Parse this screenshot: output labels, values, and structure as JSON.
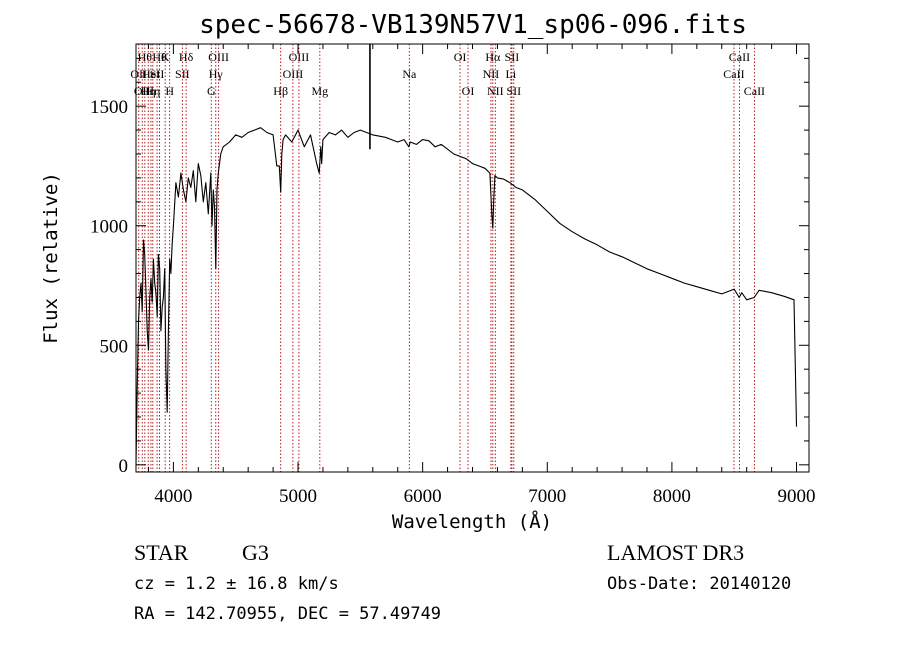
{
  "chart_data": {
    "type": "line",
    "title": "spec-56678-VB139N57V1_sp06-096.fits",
    "xlabel": "Wavelength (Å)",
    "ylabel": "Flux (relative)",
    "xlim": [
      3700,
      9100
    ],
    "ylim": [
      -30,
      1760
    ],
    "xticks": [
      4000,
      5000,
      6000,
      7000,
      8000,
      9000
    ],
    "yticks": [
      0,
      500,
      1000,
      1500
    ],
    "grid": false,
    "series": [
      {
        "name": "flux",
        "x": [
          3700,
          3710,
          3720,
          3730,
          3740,
          3750,
          3760,
          3770,
          3780,
          3790,
          3800,
          3810,
          3820,
          3830,
          3840,
          3850,
          3860,
          3870,
          3880,
          3890,
          3900,
          3910,
          3920,
          3930,
          3940,
          3950,
          3960,
          3970,
          3980,
          3990,
          4000,
          4020,
          4040,
          4060,
          4080,
          4100,
          4120,
          4140,
          4160,
          4180,
          4200,
          4220,
          4240,
          4260,
          4280,
          4300,
          4310,
          4320,
          4330,
          4340,
          4350,
          4360,
          4380,
          4400,
          4450,
          4500,
          4550,
          4600,
          4650,
          4700,
          4750,
          4800,
          4830,
          4850,
          4861,
          4870,
          4880,
          4900,
          4950,
          5000,
          5050,
          5100,
          5150,
          5170,
          5183,
          5190,
          5200,
          5250,
          5300,
          5350,
          5400,
          5450,
          5500,
          5550,
          5600,
          5650,
          5700,
          5750,
          5800,
          5850,
          5890,
          5900,
          5950,
          6000,
          6050,
          6100,
          6150,
          6200,
          6250,
          6300,
          6350,
          6400,
          6450,
          6500,
          6540,
          6555,
          6563,
          6570,
          6580,
          6600,
          6650,
          6700,
          6750,
          6800,
          6900,
          7000,
          7100,
          7200,
          7300,
          7400,
          7500,
          7600,
          7700,
          7800,
          7900,
          8000,
          8100,
          8200,
          8300,
          8400,
          8500,
          8540,
          8560,
          8600,
          8660,
          8700,
          8800,
          8900,
          8980,
          9000
        ],
        "values": [
          0,
          320,
          600,
          700,
          760,
          640,
          940,
          880,
          720,
          560,
          480,
          700,
          780,
          680,
          860,
          760,
          720,
          620,
          880,
          820,
          560,
          660,
          700,
          820,
          400,
          220,
          560,
          860,
          800,
          920,
          1000,
          1180,
          1120,
          1220,
          1150,
          1100,
          1200,
          1160,
          1230,
          1100,
          1260,
          1210,
          1100,
          1180,
          1050,
          1220,
          1000,
          1150,
          1080,
          820,
          1150,
          1220,
          1300,
          1330,
          1350,
          1380,
          1370,
          1390,
          1400,
          1410,
          1390,
          1380,
          1250,
          1250,
          1140,
          1300,
          1360,
          1380,
          1350,
          1400,
          1330,
          1380,
          1260,
          1220,
          1330,
          1260,
          1360,
          1390,
          1380,
          1400,
          1370,
          1390,
          1400,
          1390,
          1380,
          1375,
          1370,
          1360,
          1350,
          1360,
          1330,
          1350,
          1340,
          1360,
          1355,
          1330,
          1340,
          1320,
          1300,
          1290,
          1280,
          1260,
          1250,
          1240,
          1220,
          1050,
          990,
          1100,
          1210,
          1200,
          1195,
          1180,
          1160,
          1150,
          1110,
          1060,
          1010,
          975,
          945,
          920,
          890,
          870,
          845,
          820,
          800,
          780,
          760,
          745,
          730,
          715,
          735,
          700,
          720,
          690,
          700,
          730,
          720,
          705,
          690,
          160
        ]
      }
    ],
    "annotations": [
      {
        "x": 3722,
        "text": "OII",
        "row": 2
      },
      {
        "x": 3750,
        "text": "OII",
        "row": 3
      },
      {
        "x": 3771,
        "text": "Hθ",
        "row": 1
      },
      {
        "x": 3798,
        "text": "Hη",
        "row": 3
      },
      {
        "x": 3835,
        "text": "Hη",
        "row": 3
      },
      {
        "x": 3820,
        "text": "HeI",
        "row": 2
      },
      {
        "x": 3869,
        "text": "SII",
        "row": 2
      },
      {
        "x": 3889,
        "text": "Hθ",
        "row": 1
      },
      {
        "x": 3934,
        "text": "K",
        "row": 1
      },
      {
        "x": 3970,
        "text": "H",
        "row": 3
      },
      {
        "x": 4072,
        "text": "SII",
        "row": 2
      },
      {
        "x": 4102,
        "text": "Hδ",
        "row": 1
      },
      {
        "x": 4304,
        "text": "G",
        "row": 3
      },
      {
        "x": 4340,
        "text": "Hγ",
        "row": 2
      },
      {
        "x": 4363,
        "text": "OIII",
        "row": 1
      },
      {
        "x": 4861,
        "text": "Hβ",
        "row": 3
      },
      {
        "x": 4959,
        "text": "OIII",
        "row": 2
      },
      {
        "x": 5007,
        "text": "OIII",
        "row": 1
      },
      {
        "x": 5175,
        "text": "Mg",
        "row": 3
      },
      {
        "x": 5893,
        "text": "Na",
        "row": 2
      },
      {
        "x": 6300,
        "text": "OI",
        "row": 1
      },
      {
        "x": 6364,
        "text": "OI",
        "row": 3
      },
      {
        "x": 6548,
        "text": "NII",
        "row": 2
      },
      {
        "x": 6563,
        "text": "Hα",
        "row": 1
      },
      {
        "x": 6583,
        "text": "NII",
        "row": 3
      },
      {
        "x": 6708,
        "text": "Li",
        "row": 2
      },
      {
        "x": 6716,
        "text": "SII",
        "row": 1
      },
      {
        "x": 6731,
        "text": "SII",
        "row": 3
      },
      {
        "x": 8498,
        "text": "CaII",
        "row": 2
      },
      {
        "x": 8542,
        "text": "CaII",
        "row": 1
      },
      {
        "x": 8662,
        "text": "CaII",
        "row": 3
      }
    ],
    "marker_line": {
      "x": 5577
    }
  },
  "info": {
    "object_class": "STAR",
    "subclass": "G3",
    "survey": "LAMOST DR3",
    "redshift_text": "cz = 1.2 ± 16.8 km/s",
    "obs_date_text": "Obs-Date: 20140120",
    "coords_text": "RA = 142.70955, DEC =  57.49749"
  }
}
